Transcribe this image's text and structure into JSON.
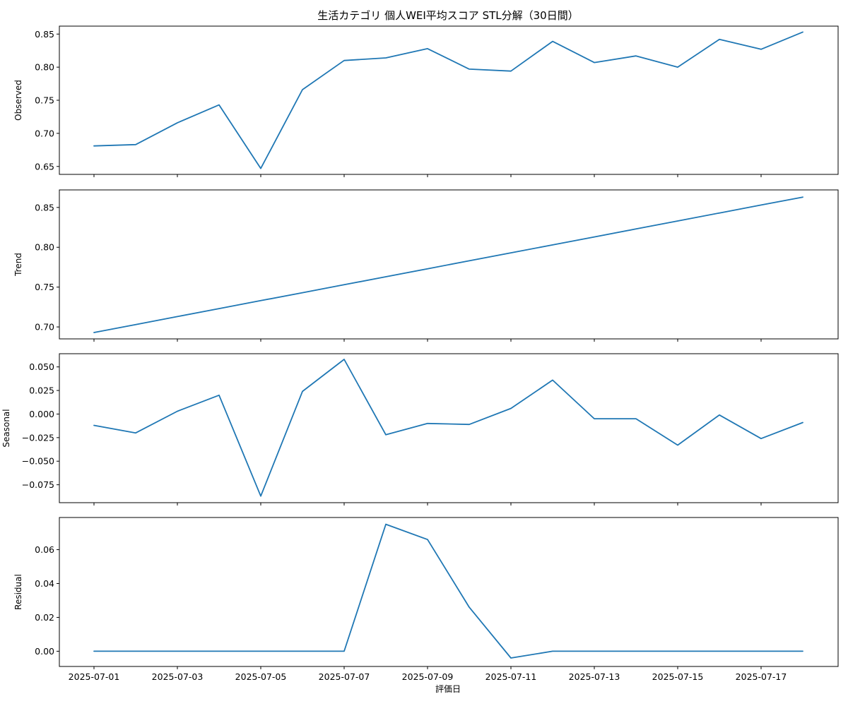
{
  "title": "生活カテゴリ 個人WEI平均スコア STL分解（30日間）",
  "xlabel": "評価日",
  "line_color": "#1f77b4",
  "chart_data": {
    "type": "line",
    "title": "生活カテゴリ 個人WEI平均スコア STL分解（30日間）",
    "xlabel": "評価日",
    "x": [
      "2025-07-01",
      "2025-07-02",
      "2025-07-03",
      "2025-07-04",
      "2025-07-05",
      "2025-07-06",
      "2025-07-07",
      "2025-07-08",
      "2025-07-09",
      "2025-07-10",
      "2025-07-11",
      "2025-07-12",
      "2025-07-13",
      "2025-07-14",
      "2025-07-15",
      "2025-07-16",
      "2025-07-17",
      "2025-07-18"
    ],
    "xticks": [
      "2025-07-01",
      "2025-07-03",
      "2025-07-05",
      "2025-07-07",
      "2025-07-09",
      "2025-07-11",
      "2025-07-13",
      "2025-07-15",
      "2025-07-17"
    ],
    "panels": [
      {
        "ylabel": "Observed",
        "ylim": [
          0.638,
          0.862
        ],
        "yticks": [
          "0.65",
          "0.70",
          "0.75",
          "0.80",
          "0.85"
        ],
        "values": [
          0.681,
          0.683,
          0.716,
          0.743,
          0.647,
          0.766,
          0.81,
          0.814,
          0.828,
          0.797,
          0.794,
          0.839,
          0.807,
          0.817,
          0.8,
          0.842,
          0.827,
          0.853
        ]
      },
      {
        "ylabel": "Trend",
        "ylim": [
          0.685,
          0.872
        ],
        "yticks": [
          "0.70",
          "0.75",
          "0.80",
          "0.85"
        ],
        "values": [
          0.693,
          0.703,
          0.713,
          0.723,
          0.733,
          0.743,
          0.753,
          0.763,
          0.773,
          0.783,
          0.793,
          0.803,
          0.813,
          0.823,
          0.833,
          0.843,
          0.853,
          0.863
        ]
      },
      {
        "ylabel": "Seasonal",
        "ylim": [
          -0.094,
          0.064
        ],
        "yticks": [
          "0.050",
          "0.025",
          "0.000",
          "−0.025",
          "−0.050",
          "−0.075"
        ],
        "values": [
          -0.012,
          -0.02,
          0.003,
          0.02,
          -0.087,
          0.024,
          0.058,
          -0.022,
          -0.01,
          -0.011,
          0.006,
          0.036,
          -0.005,
          -0.005,
          -0.033,
          -0.001,
          -0.026,
          -0.009
        ]
      },
      {
        "ylabel": "Residual",
        "ylim": [
          -0.009,
          0.079
        ],
        "yticks": [
          "0.00",
          "0.02",
          "0.04",
          "0.06"
        ],
        "values": [
          0,
          0,
          0,
          0,
          0,
          0,
          0,
          0.075,
          0.066,
          0.026,
          -0.004,
          0,
          0,
          0,
          0,
          0,
          0,
          0
        ]
      }
    ]
  }
}
